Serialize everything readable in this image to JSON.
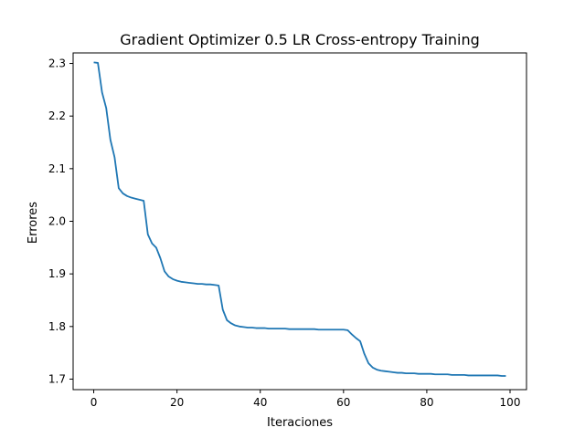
{
  "chart_data": {
    "type": "line",
    "title": "Gradient Optimizer 0.5 LR Cross-entropy Training",
    "xlabel": "Iteraciones",
    "ylabel": "Errores",
    "xlim": [
      -4.95,
      103.95
    ],
    "ylim": [
      1.68,
      2.32
    ],
    "xticks": [
      0,
      20,
      40,
      60,
      80,
      100
    ],
    "yticks": [
      1.7,
      1.8,
      1.9,
      2.0,
      2.1,
      2.2,
      2.3
    ],
    "ytick_labels": [
      "1.7",
      "1.8",
      "1.9",
      "2.0",
      "2.1",
      "2.2",
      "2.3"
    ],
    "grid": false,
    "line_color": "#1f77b4",
    "series": [
      {
        "x": [
          0,
          1,
          2,
          3,
          4,
          5,
          6,
          7,
          8,
          9,
          10,
          11,
          12,
          13,
          14,
          15,
          16,
          17,
          18,
          19,
          20,
          21,
          22,
          23,
          24,
          25,
          26,
          27,
          28,
          29,
          30,
          31,
          32,
          33,
          34,
          35,
          36,
          37,
          38,
          39,
          40,
          41,
          42,
          43,
          44,
          45,
          46,
          47,
          48,
          49,
          50,
          51,
          52,
          53,
          54,
          55,
          56,
          57,
          58,
          59,
          60,
          61,
          62,
          63,
          64,
          65,
          66,
          67,
          68,
          69,
          70,
          71,
          72,
          73,
          74,
          75,
          76,
          77,
          78,
          79,
          80,
          81,
          82,
          83,
          84,
          85,
          86,
          87,
          88,
          89,
          90,
          91,
          92,
          93,
          94,
          95,
          96,
          97,
          98,
          99
        ],
        "y": [
          2.302,
          2.301,
          2.245,
          2.215,
          2.155,
          2.122,
          2.063,
          2.053,
          2.048,
          2.045,
          2.043,
          2.041,
          2.039,
          1.975,
          1.958,
          1.95,
          1.93,
          1.905,
          1.895,
          1.89,
          1.887,
          1.885,
          1.884,
          1.883,
          1.882,
          1.881,
          1.881,
          1.88,
          1.88,
          1.879,
          1.878,
          1.832,
          1.812,
          1.806,
          1.802,
          1.8,
          1.799,
          1.798,
          1.798,
          1.797,
          1.797,
          1.797,
          1.796,
          1.796,
          1.796,
          1.796,
          1.796,
          1.795,
          1.795,
          1.795,
          1.795,
          1.795,
          1.795,
          1.795,
          1.794,
          1.794,
          1.794,
          1.794,
          1.794,
          1.794,
          1.794,
          1.793,
          1.785,
          1.778,
          1.772,
          1.748,
          1.73,
          1.722,
          1.718,
          1.716,
          1.715,
          1.714,
          1.713,
          1.712,
          1.712,
          1.711,
          1.711,
          1.711,
          1.71,
          1.71,
          1.71,
          1.71,
          1.709,
          1.709,
          1.709,
          1.709,
          1.708,
          1.708,
          1.708,
          1.708,
          1.707,
          1.707,
          1.707,
          1.707,
          1.707,
          1.707,
          1.707,
          1.707,
          1.706,
          1.706
        ]
      }
    ]
  }
}
